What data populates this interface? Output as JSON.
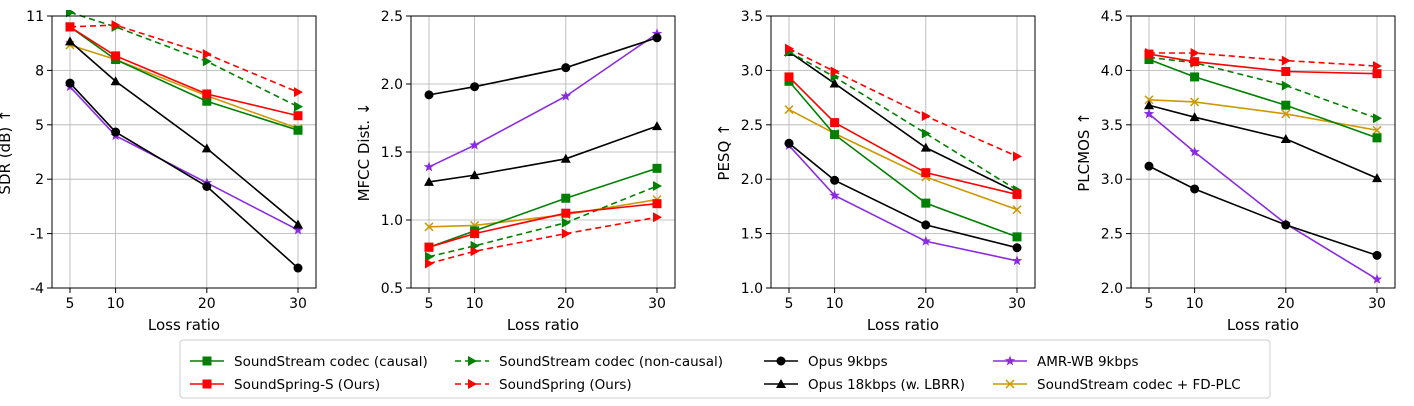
{
  "chart_data": {
    "type": "line",
    "x_categories": [
      5,
      10,
      20,
      30
    ],
    "xlabel": "Loss ratio",
    "series_styles": [
      {
        "key": "ss_causal",
        "name": "SoundStream codec (causal)",
        "color": "#008000",
        "marker": "square",
        "dash": false
      },
      {
        "key": "ss_noncausal",
        "name": "SoundStream codec (non-causal)",
        "color": "#008000",
        "marker": "triangle-right",
        "dash": true
      },
      {
        "key": "opus9",
        "name": "Opus 9kbps",
        "color": "#000000",
        "marker": "circle",
        "dash": false
      },
      {
        "key": "amrwb",
        "name": "AMR-WB 9kbps",
        "color": "#8a2be2",
        "marker": "star",
        "dash": false
      },
      {
        "key": "soundspring_s",
        "name": "SoundSpring-S (Ours)",
        "color": "#ff0000",
        "marker": "square",
        "dash": false
      },
      {
        "key": "soundspring",
        "name": "SoundSpring (Ours)",
        "color": "#ff0000",
        "marker": "triangle-right",
        "dash": true
      },
      {
        "key": "opus18",
        "name": "Opus 18kbps (w. LBRR)",
        "color": "#000000",
        "marker": "triangle-up",
        "dash": false
      },
      {
        "key": "ss_fdplc",
        "name": "SoundStream codec + FD-PLC",
        "color": "#cc9900",
        "marker": "x",
        "dash": false
      }
    ],
    "legend_order": [
      "ss_causal",
      "ss_noncausal",
      "opus9",
      "amrwb",
      "soundspring_s",
      "soundspring",
      "opus18",
      "ss_fdplc"
    ],
    "legend_position": "bottom-center",
    "grid": true,
    "panels": [
      {
        "ylabel": "SDR (dB) ↑",
        "ylim": [
          -4,
          11
        ],
        "yticks": [
          -4,
          -1,
          2,
          5,
          8,
          11
        ],
        "series": {
          "ss_causal": [
            10.4,
            8.6,
            6.3,
            4.7
          ],
          "ss_noncausal": [
            11.2,
            10.4,
            8.5,
            6.0
          ],
          "opus9": [
            7.3,
            4.6,
            1.6,
            -2.9
          ],
          "amrwb": [
            7.1,
            4.4,
            1.8,
            -0.8
          ],
          "soundspring_s": [
            10.4,
            8.8,
            6.7,
            5.5
          ],
          "soundspring": [
            10.4,
            10.5,
            8.9,
            6.8
          ],
          "opus18": [
            9.6,
            7.4,
            3.7,
            -0.5
          ],
          "ss_fdplc": [
            9.4,
            8.6,
            6.6,
            4.8
          ]
        }
      },
      {
        "ylabel": "MFCC Dist. ↓",
        "ylim": [
          0.5,
          2.5
        ],
        "yticks": [
          0.5,
          1.0,
          1.5,
          2.0,
          2.5
        ],
        "series": {
          "ss_causal": [
            0.8,
            0.92,
            1.16,
            1.38
          ],
          "ss_noncausal": [
            0.73,
            0.81,
            0.98,
            1.25
          ],
          "opus9": [
            1.92,
            1.98,
            2.12,
            2.34
          ],
          "amrwb": [
            1.39,
            1.55,
            1.91,
            2.37
          ],
          "soundspring_s": [
            0.8,
            0.9,
            1.05,
            1.12
          ],
          "soundspring": [
            0.68,
            0.77,
            0.9,
            1.02
          ],
          "opus18": [
            1.28,
            1.33,
            1.45,
            1.69
          ],
          "ss_fdplc": [
            0.95,
            0.96,
            1.04,
            1.15
          ]
        }
      },
      {
        "ylabel": "PESQ ↑",
        "ylim": [
          1.0,
          3.5
        ],
        "yticks": [
          1.0,
          1.5,
          2.0,
          2.5,
          3.0,
          3.5
        ],
        "series": {
          "ss_causal": [
            2.9,
            2.41,
            1.78,
            1.47
          ],
          "ss_noncausal": [
            3.17,
            2.94,
            2.42,
            1.9
          ],
          "opus9": [
            2.33,
            1.99,
            1.58,
            1.37
          ],
          "amrwb": [
            2.31,
            1.85,
            1.43,
            1.25
          ],
          "soundspring_s": [
            2.94,
            2.52,
            2.06,
            1.86
          ],
          "soundspring": [
            3.2,
            2.99,
            2.58,
            2.21
          ],
          "opus18": [
            3.17,
            2.88,
            2.29,
            1.88
          ],
          "ss_fdplc": [
            2.64,
            2.42,
            2.02,
            1.72
          ]
        }
      },
      {
        "ylabel": "PLCMOS ↑",
        "ylim": [
          2.0,
          4.5
        ],
        "yticks": [
          2.0,
          2.5,
          3.0,
          3.5,
          4.0,
          4.5
        ],
        "series": {
          "ss_causal": [
            4.1,
            3.94,
            3.68,
            3.38
          ],
          "ss_noncausal": [
            4.12,
            4.07,
            3.86,
            3.56
          ],
          "opus9": [
            3.12,
            2.91,
            2.58,
            2.3
          ],
          "amrwb": [
            3.6,
            3.25,
            2.59,
            2.08
          ],
          "soundspring_s": [
            4.15,
            4.08,
            3.99,
            3.97
          ],
          "soundspring": [
            4.16,
            4.16,
            4.09,
            4.04
          ],
          "opus18": [
            3.68,
            3.57,
            3.37,
            3.01
          ],
          "ss_fdplc": [
            3.73,
            3.71,
            3.6,
            3.45
          ]
        }
      }
    ]
  }
}
